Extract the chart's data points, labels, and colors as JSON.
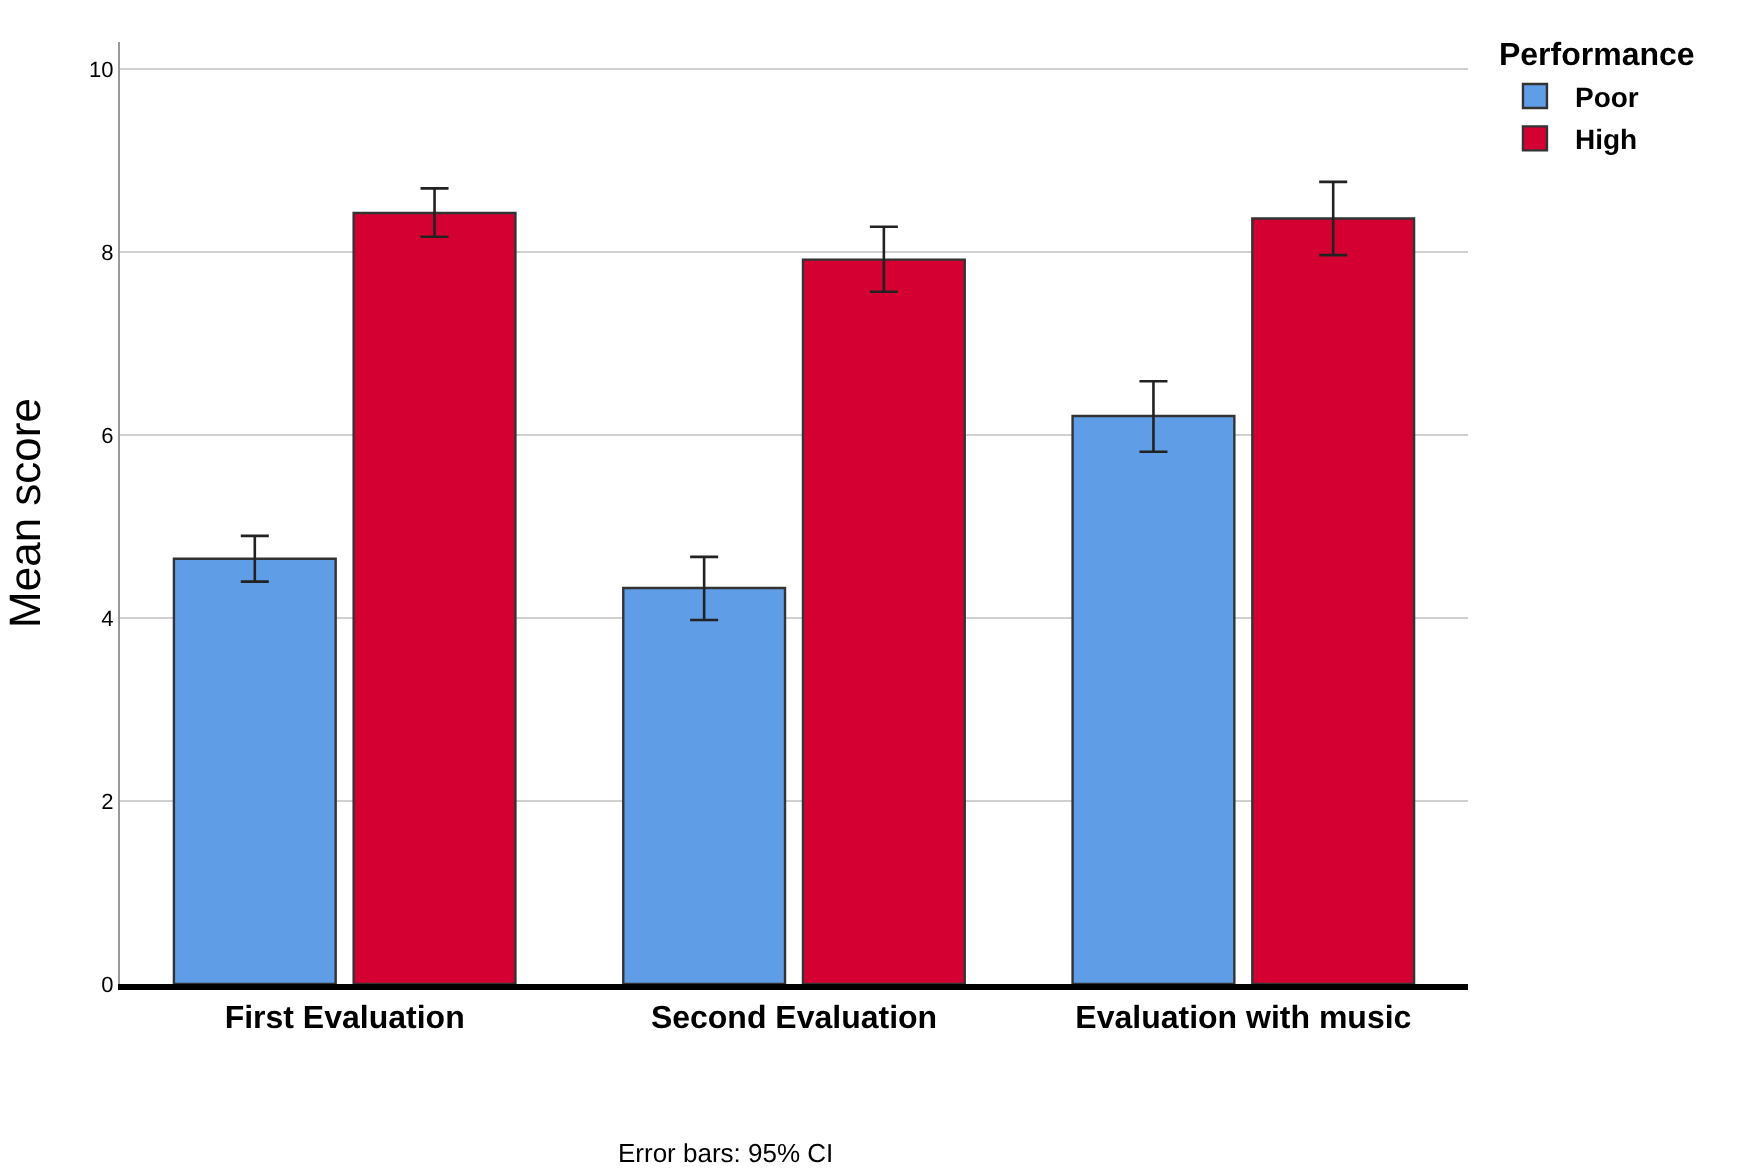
{
  "chart_data": {
    "type": "bar",
    "ylabel": "Mean score",
    "legend_title": "Performance",
    "categories": [
      "First Evaluation",
      "Second Evaluation",
      "Evaluation with music"
    ],
    "series": [
      {
        "name": "Poor",
        "color": "#5f9de6",
        "values": [
          4.65,
          4.33,
          6.21
        ],
        "errors": [
          [
            4.4,
            4.9
          ],
          [
            3.98,
            4.67
          ],
          [
            5.82,
            6.59
          ]
        ]
      },
      {
        "name": "High",
        "color": "#d50032",
        "values": [
          8.43,
          7.92,
          8.37
        ],
        "errors": [
          [
            8.17,
            8.7
          ],
          [
            7.57,
            8.28
          ],
          [
            7.97,
            8.77
          ]
        ]
      }
    ],
    "ylim": [
      0,
      10.3
    ],
    "yticks": [
      0,
      2,
      4,
      6,
      8,
      10
    ],
    "grid": "y",
    "legend": "top right",
    "annotations": [
      "Error bars: 95% CI"
    ]
  }
}
